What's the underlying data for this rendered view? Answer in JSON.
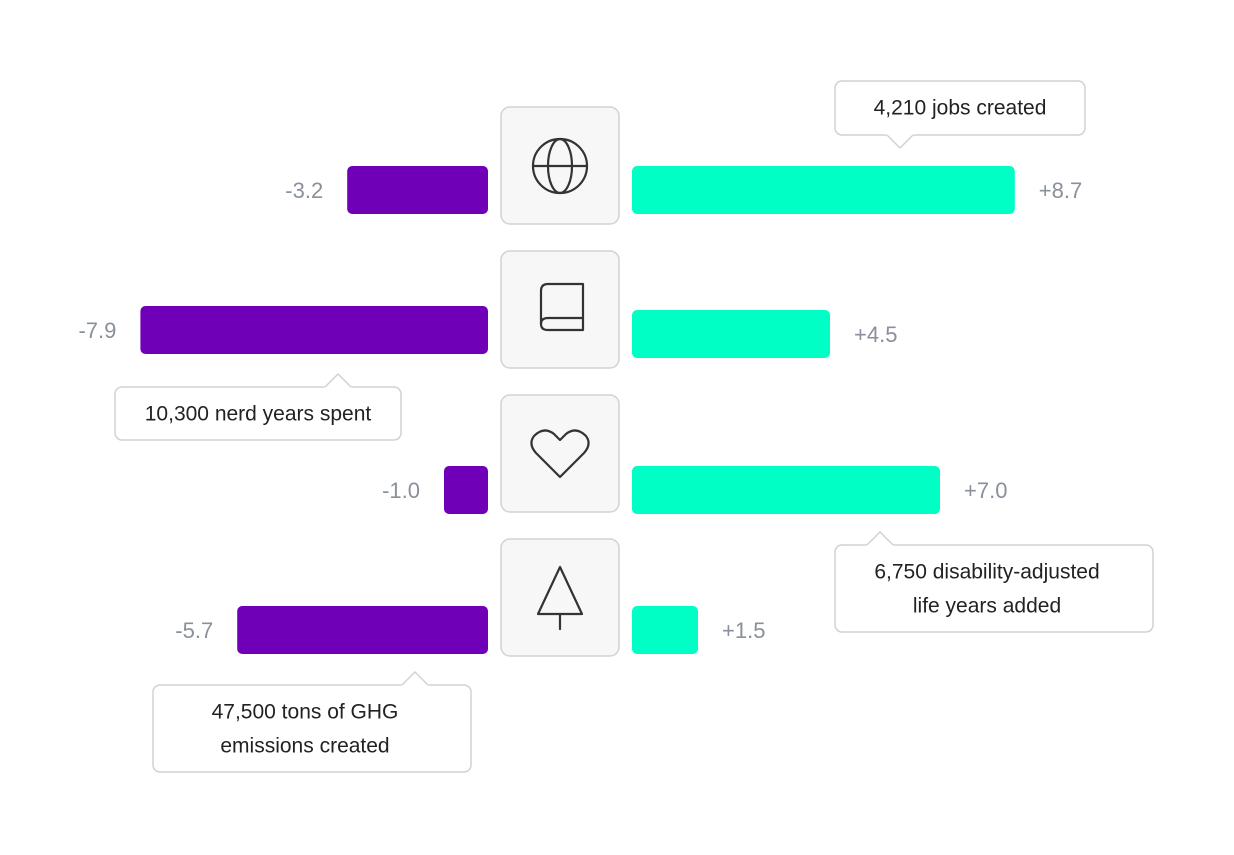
{
  "chart_data": {
    "type": "diverging_bar",
    "series": [
      {
        "color": "#7000b8",
        "values": [
          -3.2,
          -7.9,
          -1.0,
          -5.7
        ],
        "value_labels": [
          "-3.2",
          "-7.9",
          "-1.0",
          "-5.7"
        ]
      },
      {
        "color": "#00ffc4",
        "values": [
          8.7,
          4.5,
          7.0,
          1.5
        ],
        "value_labels": [
          "+8.7",
          "+4.5",
          "+7.0",
          "+1.5"
        ]
      }
    ],
    "annotations": [
      [
        "4,210 jobs created"
      ],
      [
        "10,300 nerd years spent"
      ],
      [
        "6,750 disability-adjusted",
        "life years added"
      ],
      [
        "47,500 tons of GHG",
        "emissions created"
      ]
    ]
  }
}
